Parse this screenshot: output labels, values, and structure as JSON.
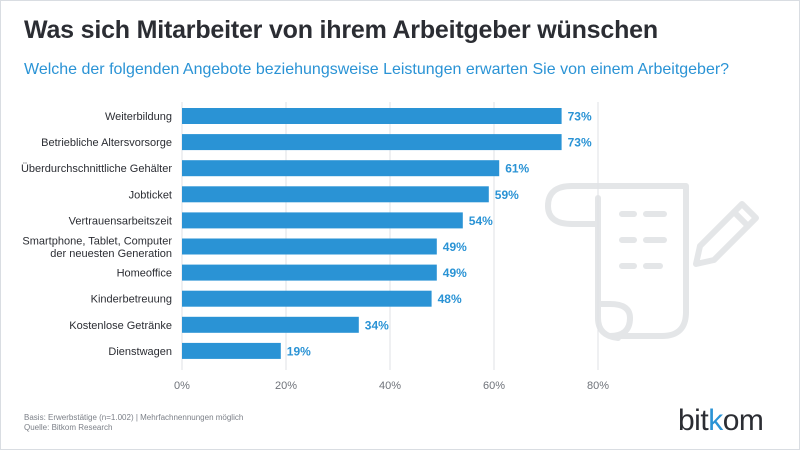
{
  "header": {
    "title": "Was sich Mitarbeiter von ihrem Arbeitgeber wünschen",
    "subtitle": "Welche der folgenden Angebote beziehungsweise Leistungen erwarten Sie von einem Arbeitgeber?"
  },
  "footer": {
    "basis": "Basis: Erwerbstätige (n=1.002) | Mehrfachnennungen möglich",
    "source": "Quelle: Bitkom Research"
  },
  "logo": {
    "text_before": "bit",
    "text_accent": "k",
    "text_after": "om"
  },
  "decor": {
    "icon": "scroll-with-pencil-icon"
  },
  "colors": {
    "bar": "#2a93d5",
    "label": "#2b2d33",
    "value": "#2a93d5",
    "grid": "#dfe2e6",
    "icon": "#e4e6e8"
  },
  "chart_data": {
    "type": "bar",
    "orientation": "horizontal",
    "categories": [
      "Weiterbildung",
      "Betriebliche Altersvorsorge",
      "Überdurchschnittliche Gehälter",
      "Jobticket",
      "Vertrauensarbeitszeit",
      "Smartphone, Tablet, Computer\nder neuesten Generation",
      "Homeoffice",
      "Kinderbetreuung",
      "Kostenlose Getränke",
      "Dienstwagen"
    ],
    "values": [
      73,
      73,
      61,
      59,
      54,
      49,
      49,
      48,
      34,
      19
    ],
    "value_labels": [
      "73%",
      "73%",
      "61%",
      "59%",
      "54%",
      "49%",
      "49%",
      "48%",
      "34%",
      "19%"
    ],
    "xlim": [
      0,
      80
    ],
    "xticks": [
      0,
      20,
      40,
      60,
      80
    ],
    "xtick_labels": [
      "0%",
      "20%",
      "40%",
      "60%",
      "80%"
    ],
    "grid": true
  }
}
